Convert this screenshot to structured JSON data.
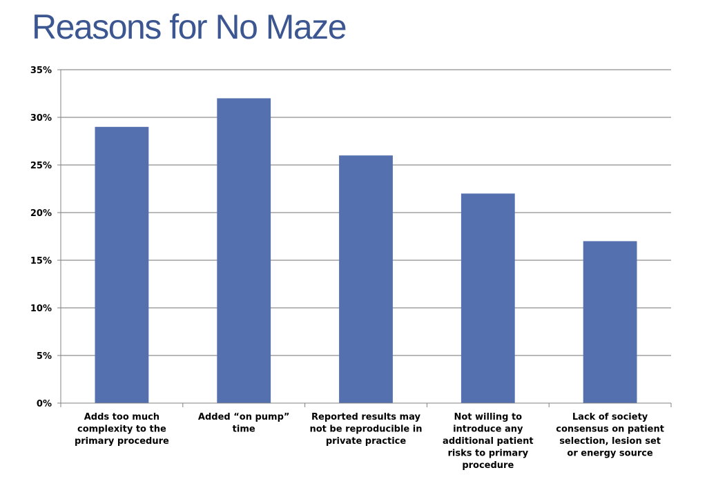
{
  "title": "Reasons for No Maze",
  "colors": {
    "title": "#3B5690",
    "bar": "#5570AE",
    "gridline": "#A0A0A0",
    "axis": "#808080"
  },
  "chart_data": {
    "type": "bar",
    "title": "",
    "xlabel": "",
    "ylabel": "",
    "ylim": [
      0,
      35
    ],
    "y_tick_step": 5,
    "y_tick_format": "percent",
    "y_tick_labels": [
      "0%",
      "5%",
      "10%",
      "15%",
      "20%",
      "25%",
      "30%",
      "35%"
    ],
    "grid": true,
    "legend": "none",
    "categories": [
      [
        "Adds too much",
        "complexity to the",
        "primary procedure"
      ],
      [
        "Added “on pump”",
        "time"
      ],
      [
        "Reported results may",
        "not be reproducible in",
        "private practice"
      ],
      [
        "Not willing to",
        "introduce any",
        "additional patient",
        "risks to primary",
        "procedure"
      ],
      [
        "Lack of society",
        "consensus on patient",
        "selection, lesion set",
        "or energy source"
      ]
    ],
    "values": [
      29,
      32,
      26,
      22,
      17
    ]
  }
}
